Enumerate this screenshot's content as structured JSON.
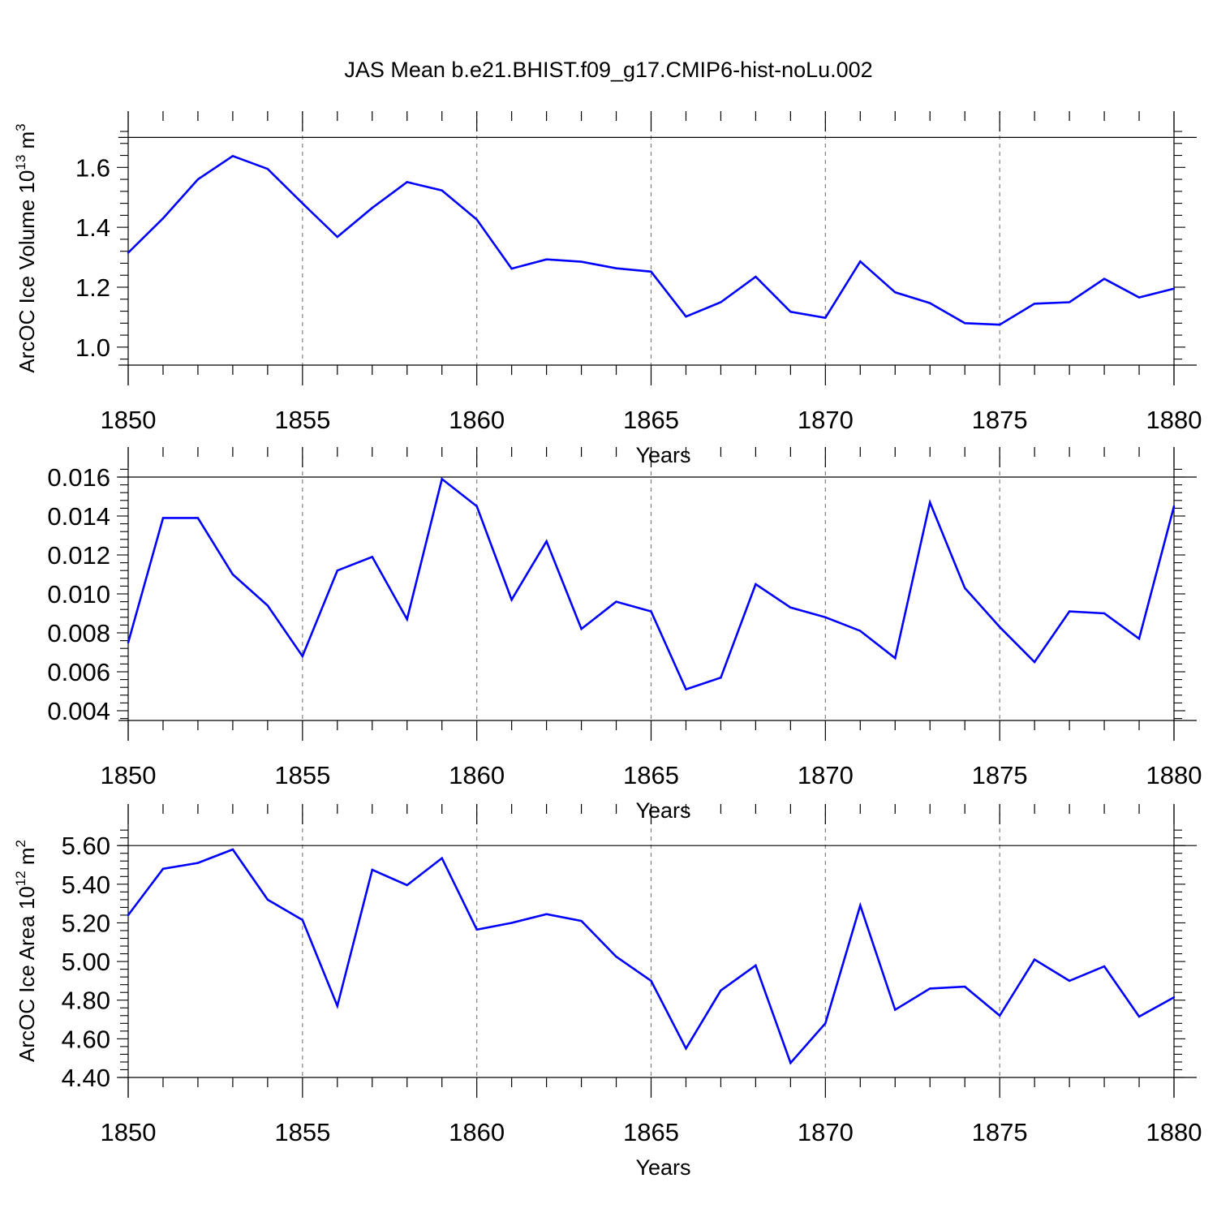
{
  "title": "JAS Mean b.e21.BHIST.f09_g17.CMIP6-hist-noLu.002",
  "colors": {
    "line": "#0000ff",
    "axis": "#000000",
    "grid": "#808080"
  },
  "chart_data": [
    {
      "type": "line",
      "ylabel": "ArcOC Ice Volume 10",
      "ylabel_sup": "13",
      "ylabel_unit": " m",
      "ylabel_unit_sup": "3",
      "xlabel": "Years",
      "xlim": [
        1850,
        1880
      ],
      "ylim": [
        0.94,
        1.72
      ],
      "ref_line": 1.7,
      "yticks": [
        1.0,
        1.2,
        1.4,
        1.6
      ],
      "ytick_labels": [
        "1.0",
        "1.2",
        "1.4",
        "1.6"
      ],
      "xticks": [
        1850,
        1855,
        1860,
        1865,
        1870,
        1875,
        1880
      ],
      "xtick_labels": [
        "1850",
        "1855",
        "1860",
        "1865",
        "1870",
        "1875",
        "1880"
      ],
      "x": [
        1850,
        1851,
        1852,
        1853,
        1854,
        1855,
        1856,
        1857,
        1858,
        1859,
        1860,
        1861,
        1862,
        1863,
        1864,
        1865,
        1866,
        1867,
        1868,
        1869,
        1870,
        1871,
        1872,
        1873,
        1874,
        1875,
        1876,
        1877,
        1878,
        1879,
        1880
      ],
      "values": [
        1.315,
        1.43,
        1.56,
        1.638,
        1.595,
        1.48,
        1.368,
        1.465,
        1.551,
        1.523,
        1.426,
        1.262,
        1.293,
        1.285,
        1.263,
        1.252,
        1.102,
        1.15,
        1.235,
        1.118,
        1.098,
        1.286,
        1.183,
        1.147,
        1.08,
        1.075,
        1.145,
        1.15,
        1.228,
        1.166,
        1.195
      ]
    },
    {
      "type": "line",
      "ylabel": "",
      "xlabel": "Years",
      "xlim": [
        1850,
        1880
      ],
      "ylim": [
        0.0035,
        0.0165
      ],
      "ref_line": 0.016,
      "yticks": [
        0.004,
        0.006,
        0.008,
        0.01,
        0.012,
        0.014,
        0.016
      ],
      "ytick_labels": [
        "0.004",
        "0.006",
        "0.008",
        "0.010",
        "0.012",
        "0.014",
        "0.016"
      ],
      "xticks": [
        1850,
        1855,
        1860,
        1865,
        1870,
        1875,
        1880
      ],
      "xtick_labels": [
        "1850",
        "1855",
        "1860",
        "1865",
        "1870",
        "1875",
        "1880"
      ],
      "x": [
        1850,
        1851,
        1852,
        1853,
        1854,
        1855,
        1856,
        1857,
        1858,
        1859,
        1860,
        1861,
        1862,
        1863,
        1864,
        1865,
        1866,
        1867,
        1868,
        1869,
        1870,
        1871,
        1872,
        1873,
        1874,
        1875,
        1876,
        1877,
        1878,
        1879,
        1880
      ],
      "values": [
        0.0075,
        0.0139,
        0.0139,
        0.011,
        0.0094,
        0.0068,
        0.0112,
        0.0119,
        0.0087,
        0.0159,
        0.0145,
        0.0097,
        0.0127,
        0.0082,
        0.0096,
        0.0091,
        0.0051,
        0.0057,
        0.0105,
        0.0093,
        0.0088,
        0.0081,
        0.0067,
        0.0147,
        0.0103,
        0.0083,
        0.0065,
        0.0091,
        0.009,
        0.0077,
        0.0145
      ]
    },
    {
      "type": "line",
      "ylabel": "ArcOC Ice Area 10",
      "ylabel_sup": "12",
      "ylabel_unit": " m",
      "ylabel_unit_sup": "2",
      "xlabel": "Years",
      "xlim": [
        1850,
        1880
      ],
      "ylim": [
        4.4,
        5.71
      ],
      "ref_line": 5.6,
      "yticks": [
        4.4,
        4.6,
        4.8,
        5.0,
        5.2,
        5.4,
        5.6
      ],
      "ytick_labels": [
        "4.40",
        "4.60",
        "4.80",
        "5.00",
        "5.20",
        "5.40",
        "5.60"
      ],
      "xticks": [
        1850,
        1855,
        1860,
        1865,
        1870,
        1875,
        1880
      ],
      "xtick_labels": [
        "1850",
        "1855",
        "1860",
        "1865",
        "1870",
        "1875",
        "1880"
      ],
      "x": [
        1850,
        1851,
        1852,
        1853,
        1854,
        1855,
        1856,
        1857,
        1858,
        1859,
        1860,
        1861,
        1862,
        1863,
        1864,
        1865,
        1866,
        1867,
        1868,
        1869,
        1870,
        1871,
        1872,
        1873,
        1874,
        1875,
        1876,
        1877,
        1878,
        1879,
        1880
      ],
      "values": [
        5.24,
        5.48,
        5.51,
        5.58,
        5.32,
        5.215,
        4.77,
        5.475,
        5.395,
        5.535,
        5.165,
        5.2,
        5.245,
        5.21,
        5.025,
        4.9,
        4.55,
        4.85,
        4.98,
        4.475,
        4.68,
        5.29,
        4.75,
        4.86,
        4.87,
        4.72,
        5.01,
        4.9,
        4.975,
        4.715,
        4.815
      ]
    }
  ]
}
